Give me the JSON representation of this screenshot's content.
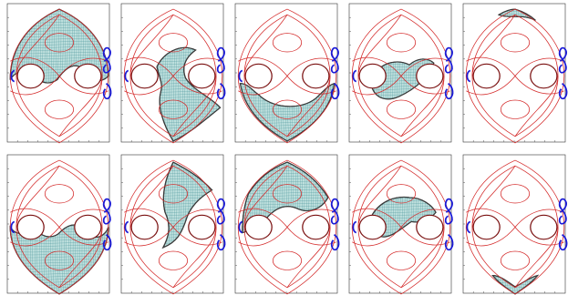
{
  "figure": {
    "rows": 2,
    "cols": 5,
    "colors": {
      "frame": "#333333",
      "red_curves": "#d42a2a",
      "blue_loops": "#1a1ad6",
      "mesh_fill": "#bfe0de",
      "mesh_lines": "#3d8d93",
      "hole_outline": "#7a1010"
    },
    "panels": [
      {
        "id": "p1",
        "region": "upper-lens"
      },
      {
        "id": "p2",
        "region": "lower-left-swirl"
      },
      {
        "id": "p3",
        "region": "lower-crescent"
      },
      {
        "id": "p4",
        "region": "center-s-band"
      },
      {
        "id": "p5",
        "region": "top-sliver"
      },
      {
        "id": "p6",
        "region": "lower-lens"
      },
      {
        "id": "p7",
        "region": "upper-left-swirl"
      },
      {
        "id": "p8",
        "region": "upper-crescent"
      },
      {
        "id": "p9",
        "region": "center-s-band-upper"
      },
      {
        "id": "p10",
        "region": "bottom-sliver"
      }
    ]
  }
}
